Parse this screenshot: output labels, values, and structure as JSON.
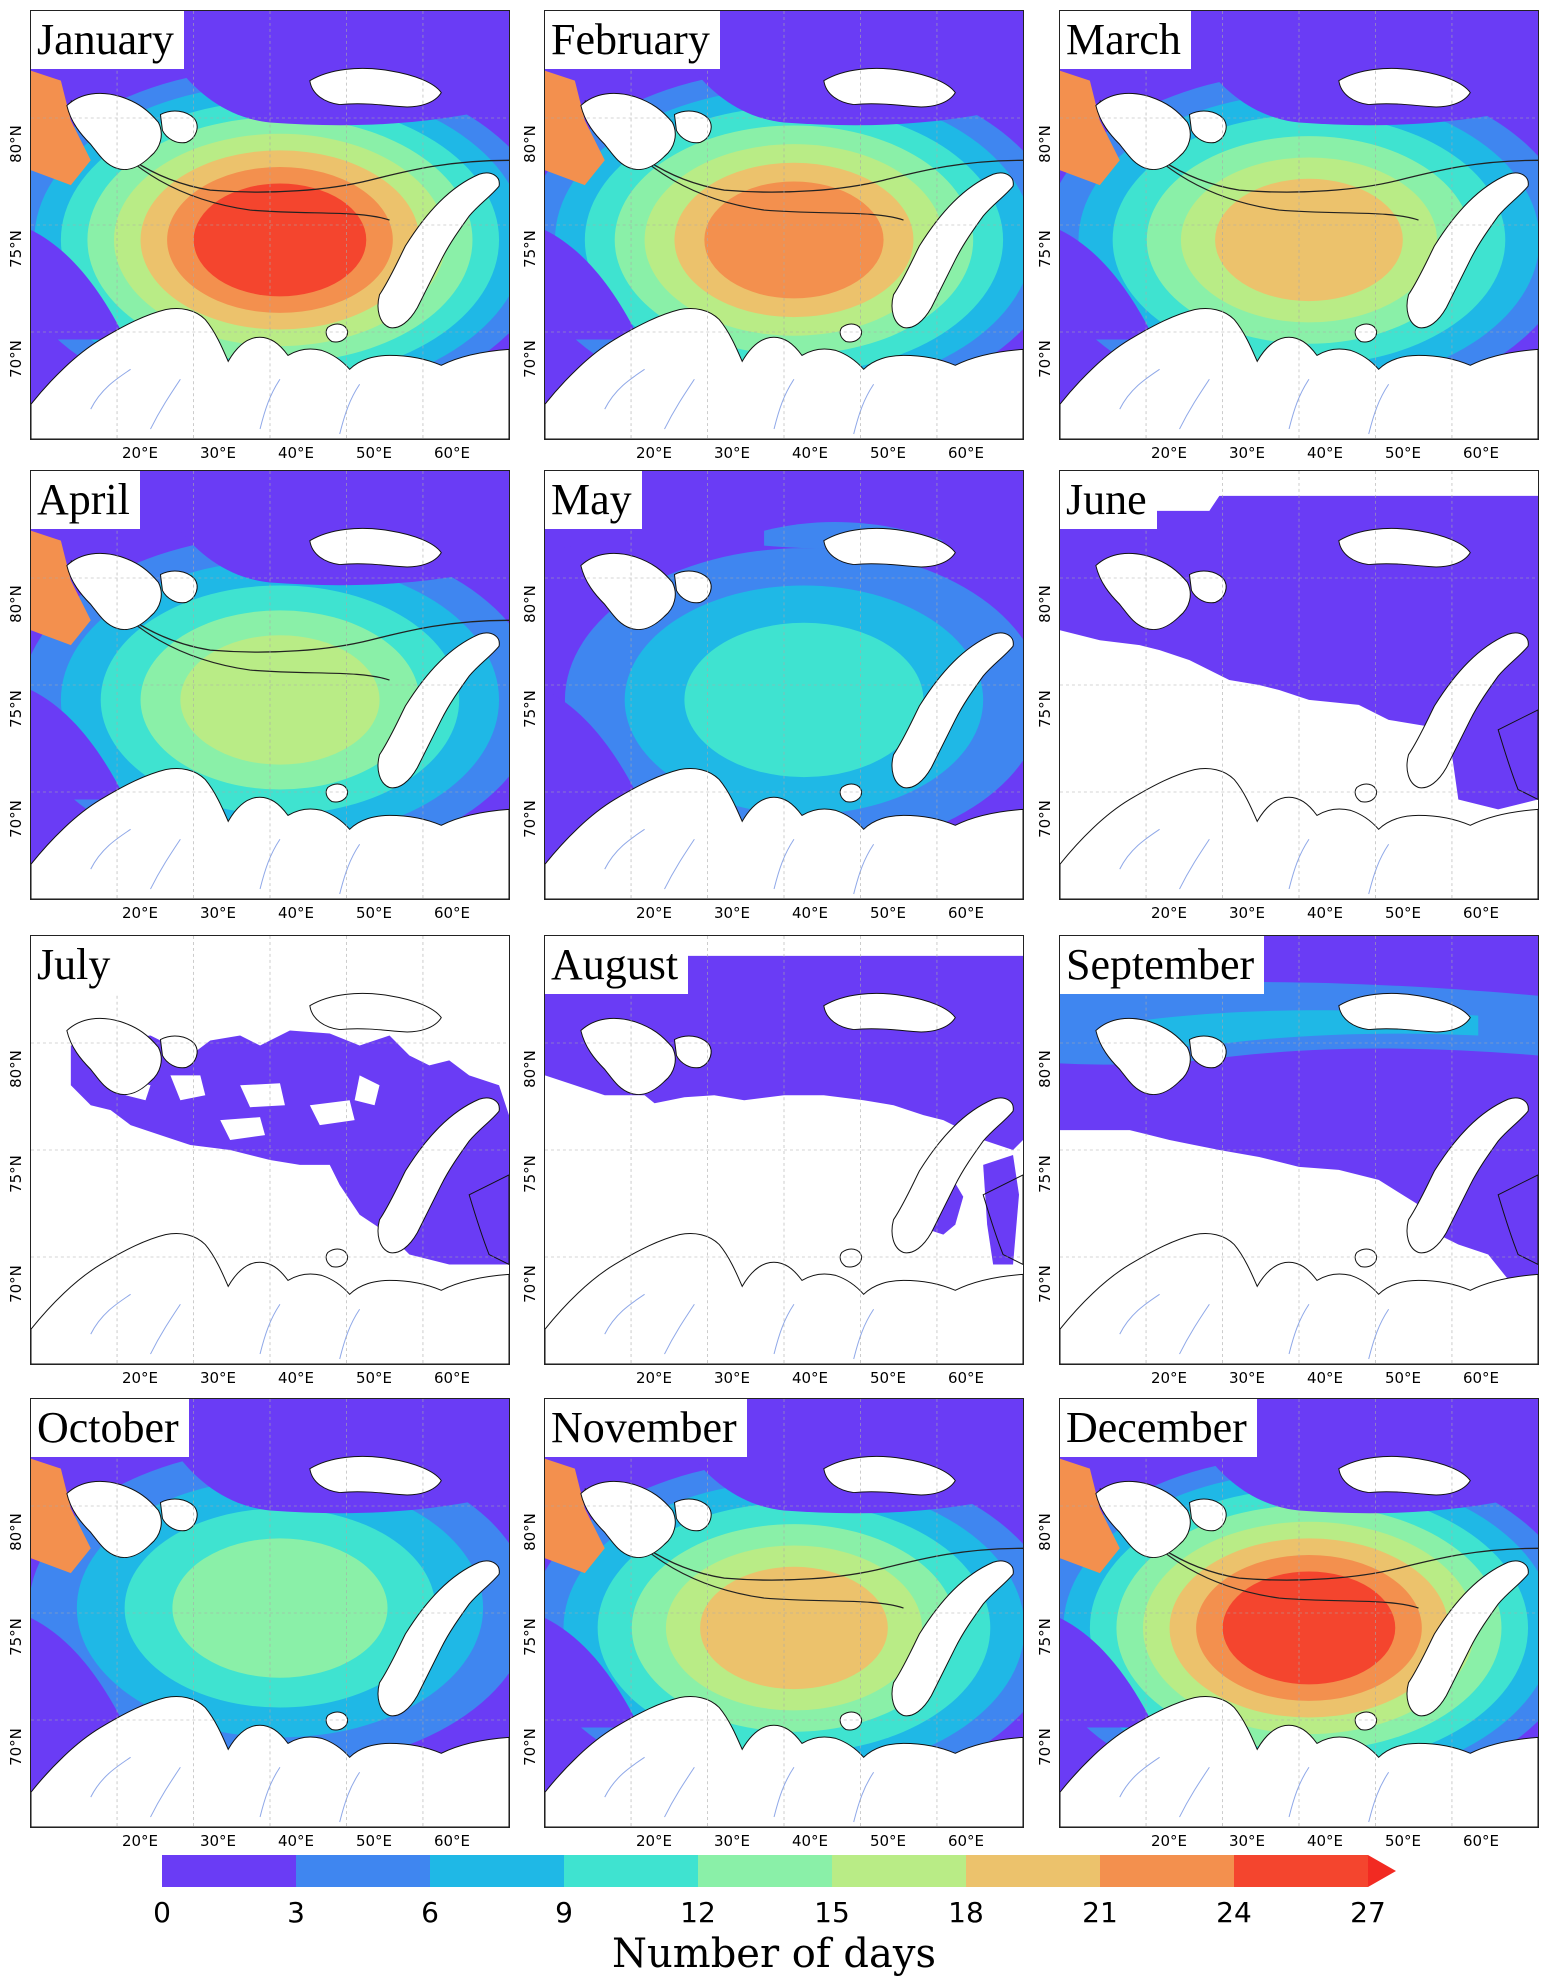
{
  "figure": {
    "colorbar": {
      "title": "Number of days",
      "ticks": [
        "0",
        "3",
        "6",
        "9",
        "12",
        "15",
        "18",
        "21",
        "24",
        "27"
      ],
      "colors": [
        "#6a3cf5",
        "#3f86f0",
        "#1fb8e6",
        "#3fe3d0",
        "#8af0a8",
        "#b9ec86",
        "#ecc26c",
        "#f3904e",
        "#f4452e"
      ],
      "extend_color": "#f22a22"
    },
    "lat_ticks": [
      "70°N",
      "75°N",
      "80°N"
    ],
    "lon_ticks": [
      "20°E",
      "30°E",
      "40°E",
      "50°E",
      "60°E"
    ],
    "land_color": "#ffffff",
    "river_color": "#8fa8e8",
    "contour_levels": [
      "1",
      "2",
      "4"
    ],
    "panels": [
      {
        "month": "January",
        "intensity": 1.0,
        "ice": "winter"
      },
      {
        "month": "February",
        "intensity": 0.85,
        "ice": "winter"
      },
      {
        "month": "March",
        "intensity": 0.8,
        "ice": "winter"
      },
      {
        "month": "April",
        "intensity": 0.62,
        "ice": "winter"
      },
      {
        "month": "May",
        "intensity": 0.4,
        "ice": "spring"
      },
      {
        "month": "June",
        "intensity": 0.0,
        "ice": "june"
      },
      {
        "month": "July",
        "intensity": 0.0,
        "ice": "july"
      },
      {
        "month": "August",
        "intensity": 0.0,
        "ice": "august"
      },
      {
        "month": "September",
        "intensity": 0.25,
        "ice": "september"
      },
      {
        "month": "October",
        "intensity": 0.55,
        "ice": "autumn"
      },
      {
        "month": "November",
        "intensity": 0.8,
        "ice": "winter"
      },
      {
        "month": "December",
        "intensity": 0.95,
        "ice": "winter"
      }
    ]
  }
}
